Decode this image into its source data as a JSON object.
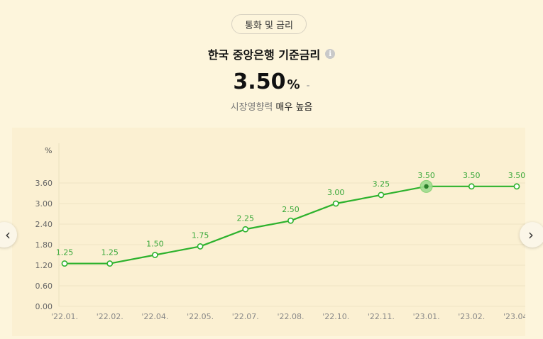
{
  "category_pill": "통화 및 금리",
  "indicator": {
    "title": "한국 중앙은행 기준금리",
    "value": "3.50",
    "unit": "%",
    "change": "-",
    "influence_label": "시장영향력",
    "influence_value": "매우 높음",
    "info_icon": "i"
  },
  "nav": {
    "prev_icon": "‹",
    "next_icon": "›"
  },
  "colors": {
    "line": "#2db22d",
    "label": "#3aa83a",
    "background": "#fdf5dc",
    "panel": "#fbf0d2"
  },
  "chart_data": {
    "type": "line",
    "ylabel": "%",
    "ylim": [
      0,
      3.6
    ],
    "yticks": [
      "0.00",
      "0.60",
      "1.20",
      "1.80",
      "2.40",
      "3.00",
      "3.60"
    ],
    "categories": [
      "'22.01.",
      "'22.02.",
      "'22.04.",
      "'22.05.",
      "'22.07.",
      "'22.08.",
      "'22.10.",
      "'22.11.",
      "'23.01.",
      "'23.02.",
      "'23.04."
    ],
    "values": [
      1.25,
      1.25,
      1.5,
      1.75,
      2.25,
      2.5,
      3.0,
      3.25,
      3.5,
      3.5,
      3.5
    ],
    "value_labels": [
      "1.25",
      "1.25",
      "1.50",
      "1.75",
      "2.25",
      "2.50",
      "3.00",
      "3.25",
      "3.50",
      "3.50",
      "3.50"
    ],
    "highlight_index": 8,
    "grid": true
  }
}
